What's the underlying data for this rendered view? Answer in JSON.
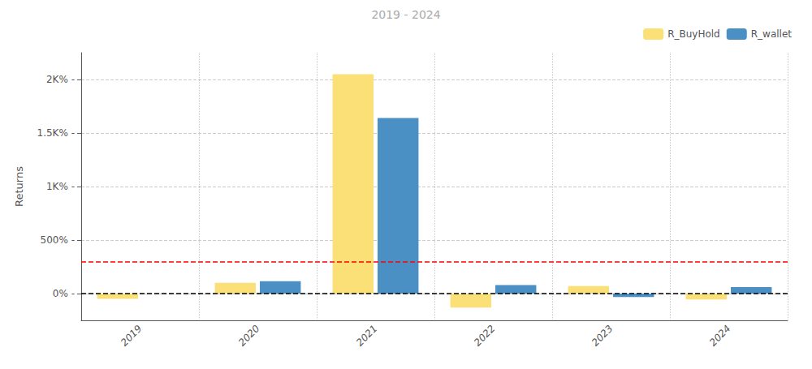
{
  "chart_data": {
    "type": "bar",
    "title": "2019 - 2024",
    "ylabel": "Returns",
    "categories": [
      "2019",
      "2020",
      "2021",
      "2022",
      "2023",
      "2024"
    ],
    "series": [
      {
        "name": "R_BuyHold",
        "color": "#FAE077",
        "values": [
          -50,
          100,
          2050,
          -130,
          70,
          -55
        ]
      },
      {
        "name": "R_wallet",
        "color": "#4A90C4",
        "values": [
          0,
          115,
          1640,
          80,
          -32,
          60
        ]
      }
    ],
    "hlines": [
      {
        "y": 300,
        "color": "red",
        "line_style": "dashed"
      },
      {
        "y": 0,
        "color": "black",
        "line_style": "dashed"
      }
    ],
    "ylim": [
      -250,
      2250
    ],
    "yticks": [
      {
        "value": 0,
        "label": "0% -"
      },
      {
        "value": 500,
        "label": "500% -"
      },
      {
        "value": 1000,
        "label": "1K% -"
      },
      {
        "value": 1500,
        "label": "1.5K% -"
      },
      {
        "value": 2000,
        "label": "2K% -"
      }
    ],
    "grid": true,
    "legend": "upper right"
  }
}
